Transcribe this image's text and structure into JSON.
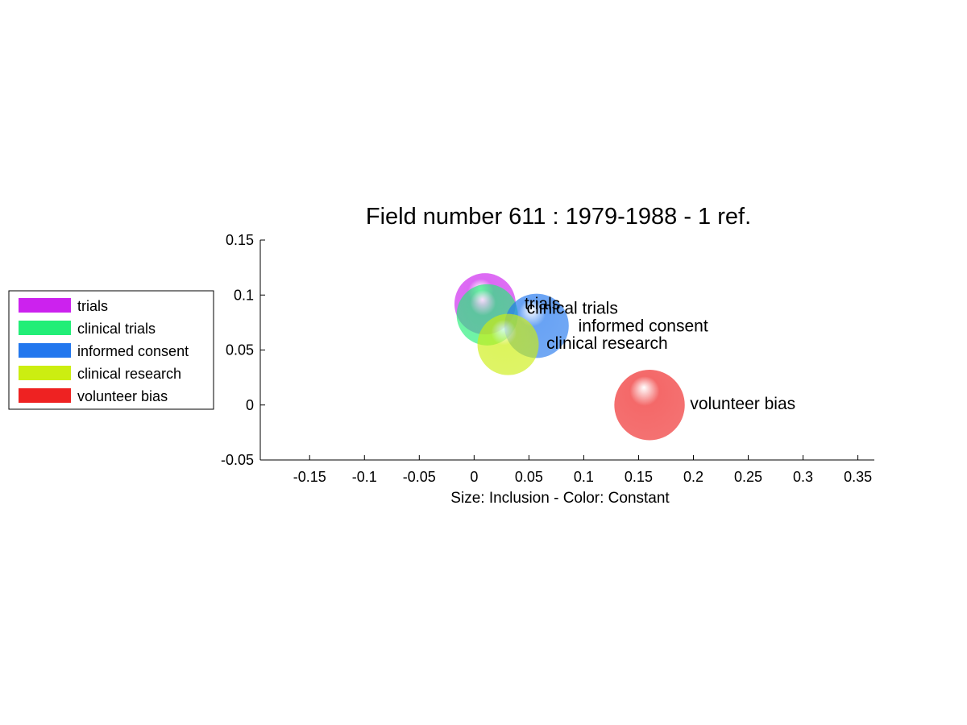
{
  "chart_data": {
    "type": "scatter",
    "title": "Field number 611 : 1979-1988  - 1 ref.",
    "xlabel": "Size: Inclusion - Color: Constant",
    "ylabel": "",
    "xlim": [
      -0.195,
      0.365
    ],
    "ylim": [
      -0.05,
      0.15
    ],
    "xticks": [
      -0.15,
      -0.1,
      -0.05,
      0,
      0.05,
      0.1,
      0.15,
      0.2,
      0.25,
      0.3,
      0.35
    ],
    "xtick_labels": [
      "-0.15",
      "-0.1",
      "-0.05",
      "0",
      "0.05",
      "0.1",
      "0.15",
      "0.2",
      "0.25",
      "0.3",
      "0.35"
    ],
    "yticks": [
      -0.05,
      0,
      0.05,
      0.1,
      0.15
    ],
    "ytick_labels": [
      "-0.05",
      "0",
      "0.05",
      "0.1",
      "0.15"
    ],
    "grid": false,
    "legend_position": "left",
    "series": [
      {
        "name": "trials",
        "x": 0.01,
        "y": 0.092,
        "size": 1,
        "color": "#cc22ee"
      },
      {
        "name": "clinical trials",
        "x": 0.012,
        "y": 0.082,
        "size": 1,
        "color": "#22ee77"
      },
      {
        "name": "informed consent",
        "x": 0.057,
        "y": 0.072,
        "size": 1.05,
        "color": "#2277ee"
      },
      {
        "name": "clinical research",
        "x": 0.031,
        "y": 0.055,
        "size": 1,
        "color": "#ccee11"
      },
      {
        "name": "volunteer bias",
        "x": 0.16,
        "y": 0.0,
        "size": 1.15,
        "color": "#ee2222"
      }
    ],
    "point_labels": [
      {
        "text": "trials",
        "x": 0.046,
        "y": 0.087
      },
      {
        "text": "clinical trials",
        "x": 0.048,
        "y": 0.083
      },
      {
        "text": "informed consent",
        "x": 0.095,
        "y": 0.067
      },
      {
        "text": "clinical research",
        "x": 0.066,
        "y": 0.051
      },
      {
        "text": "volunteer bias",
        "x": 0.197,
        "y": -0.004
      }
    ]
  }
}
